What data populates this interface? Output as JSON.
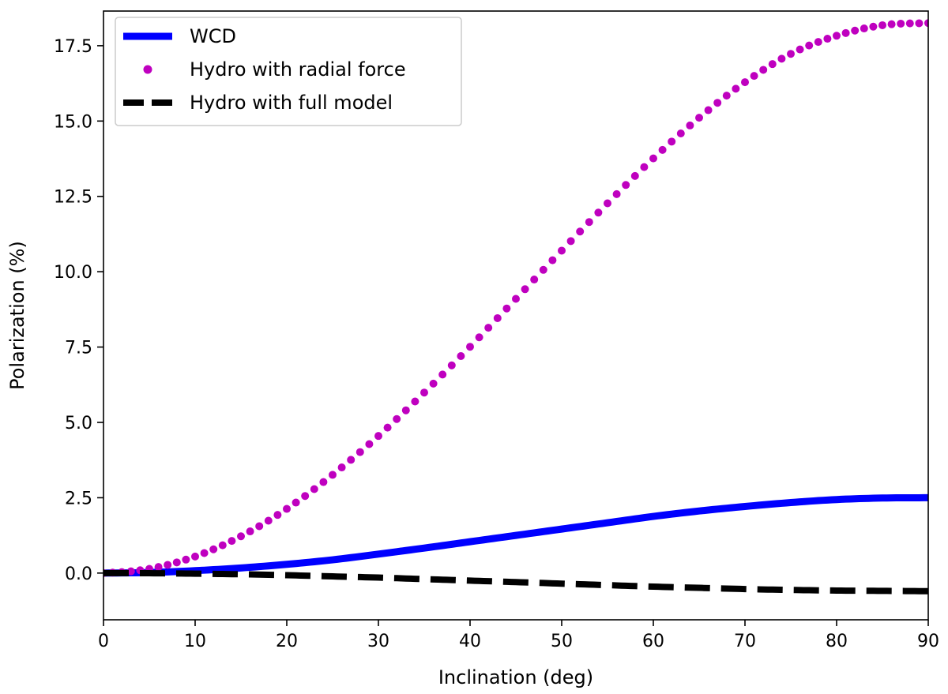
{
  "chart_data": {
    "type": "line",
    "xlabel": "Inclination (deg)",
    "ylabel": "Polarization (%)",
    "xlim": [
      0,
      90
    ],
    "ylim": [
      -1.55,
      18.65
    ],
    "x_ticks": [
      0,
      10,
      20,
      30,
      40,
      50,
      60,
      70,
      80,
      90
    ],
    "x_tick_labels": [
      "0",
      "10",
      "20",
      "30",
      "40",
      "50",
      "60",
      "70",
      "80",
      "90"
    ],
    "y_ticks": [
      0,
      2.5,
      5,
      7.5,
      10,
      12.5,
      15,
      17.5
    ],
    "y_tick_labels": [
      "0.0",
      "2.5",
      "5.0",
      "7.5",
      "10.0",
      "12.5",
      "15.0",
      "17.5"
    ],
    "grid": false,
    "legend_position": "top-left",
    "x": [
      0,
      5,
      10,
      15,
      20,
      25,
      30,
      35,
      40,
      45,
      50,
      55,
      60,
      65,
      70,
      75,
      80,
      85,
      90
    ],
    "series": [
      {
        "name": "WCD",
        "style": "solid-line",
        "color": "#0000ff",
        "values": [
          0,
          0.02,
          0.08,
          0.17,
          0.29,
          0.44,
          0.63,
          0.83,
          1.04,
          1.25,
          1.46,
          1.67,
          1.88,
          2.06,
          2.21,
          2.34,
          2.44,
          2.49,
          2.5
        ]
      },
      {
        "name": "Hydro with radial force",
        "style": "dots",
        "color": "#bf00bf",
        "values": [
          0,
          0.14,
          0.55,
          1.22,
          2.13,
          3.26,
          4.55,
          5.99,
          7.51,
          9.1,
          10.7,
          12.27,
          13.76,
          15.11,
          16.29,
          17.23,
          17.83,
          18.18,
          18.25
        ]
      },
      {
        "name": "Hydro with full model",
        "style": "dashed-line",
        "color": "#000000",
        "values": [
          0,
          -0.005,
          -0.02,
          -0.04,
          -0.07,
          -0.11,
          -0.15,
          -0.2,
          -0.25,
          -0.3,
          -0.35,
          -0.4,
          -0.45,
          -0.49,
          -0.53,
          -0.56,
          -0.58,
          -0.59,
          -0.6
        ]
      }
    ]
  }
}
